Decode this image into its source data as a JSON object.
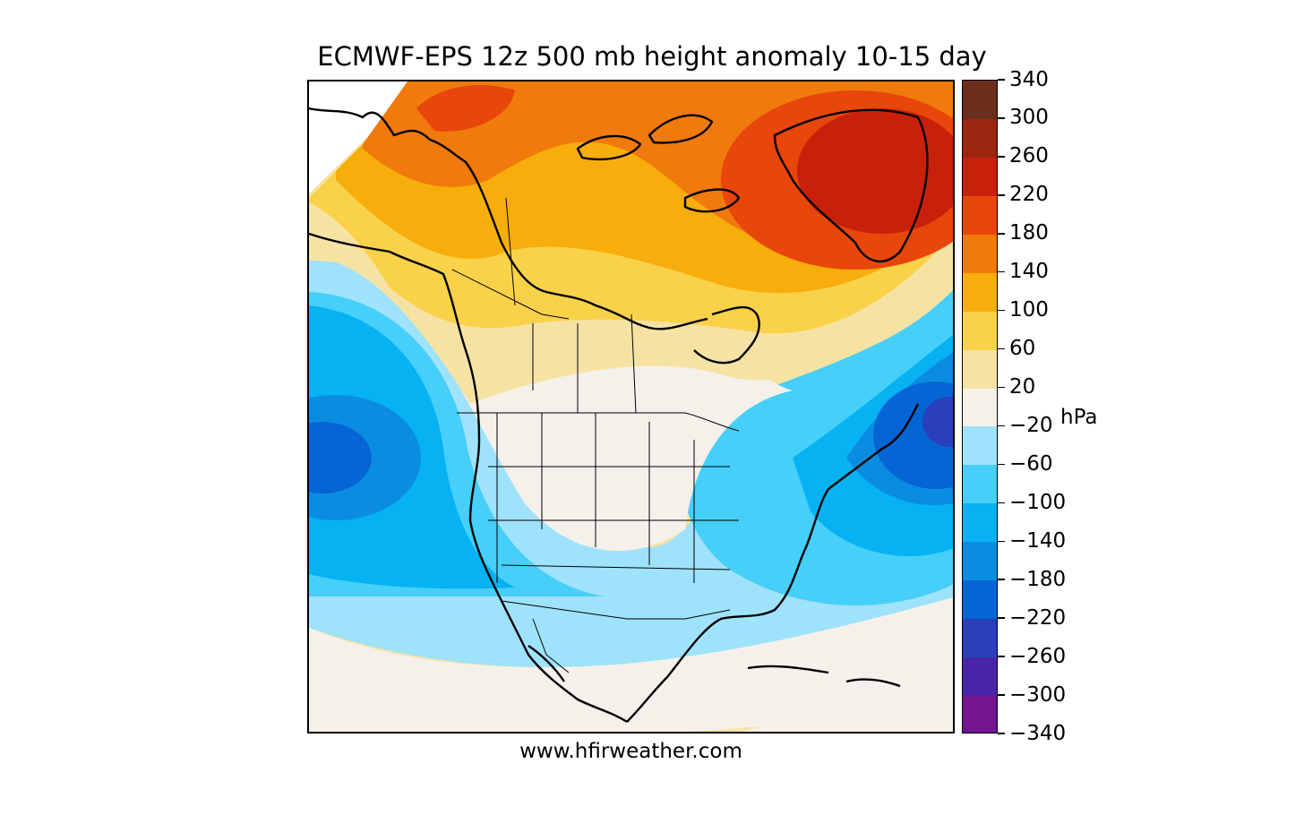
{
  "title": "ECMWF-EPS 12z 500 mb height anomaly 10-15 day",
  "footer": "www.hfirweather.com",
  "colorbar": {
    "unit": "hPa",
    "tick_labels": [
      "340",
      "300",
      "260",
      "220",
      "180",
      "140",
      "100",
      "60",
      "20",
      "−20",
      "−60",
      "−100",
      "−140",
      "−180",
      "−220",
      "−260",
      "−300",
      "−340"
    ],
    "colors": [
      "#6b2e1a",
      "#9b2510",
      "#c8200b",
      "#e8460a",
      "#f07a0b",
      "#f7ad0b",
      "#fad24a",
      "#f6e3a4",
      "#f5f1ea",
      "#9fe2fb",
      "#45cff9",
      "#06b2f2",
      "#0a8de0",
      "#0565d4",
      "#2a3fbb",
      "#4a24a8",
      "#731490"
    ]
  },
  "map": {
    "region": "North America",
    "features": [
      "coastlines",
      "state-borders",
      "province-borders"
    ],
    "anomaly_centers": [
      {
        "name": "greenland-ridge",
        "sign": "positive",
        "peak_level": "260"
      },
      {
        "name": "alaska-ridge",
        "sign": "positive",
        "peak_level": "220"
      },
      {
        "name": "pacific-trough",
        "sign": "negative",
        "peak_level": "−180"
      },
      {
        "name": "north-atlantic-trough",
        "sign": "negative",
        "peak_level": "−220"
      }
    ]
  }
}
